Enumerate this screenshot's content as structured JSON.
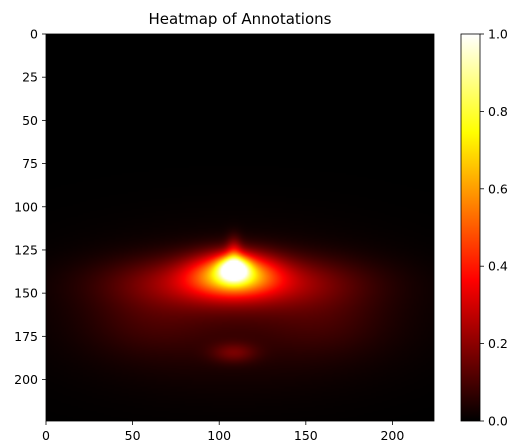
{
  "chart_data": {
    "type": "heatmap",
    "title": "Heatmap of Annotations",
    "xlabel": "",
    "ylabel": "",
    "xlim": [
      0,
      224
    ],
    "ylim": [
      224,
      0
    ],
    "x_ticks": [
      0,
      50,
      100,
      150,
      200
    ],
    "y_ticks": [
      0,
      25,
      50,
      75,
      100,
      125,
      150,
      175,
      200
    ],
    "colorbar": {
      "colormap": "hot",
      "range": [
        0.0,
        1.0
      ],
      "ticks": [
        "0.0",
        "0.2",
        "0.4",
        "0.6",
        "0.8",
        "1.0"
      ]
    },
    "grid": false,
    "hotspots": [
      {
        "x": 108,
        "y": 135,
        "sx": 6,
        "sy": 5,
        "value": 0.6
      },
      {
        "x": 108,
        "y": 138,
        "sx": 16,
        "sy": 8,
        "value": 0.5
      },
      {
        "x": 108,
        "y": 143,
        "sx": 42,
        "sy": 10,
        "value": 0.28
      },
      {
        "x": 108,
        "y": 160,
        "sx": 65,
        "sy": 28,
        "value": 0.07
      },
      {
        "x": 108,
        "y": 184,
        "sx": 9,
        "sy": 4,
        "value": 0.12
      },
      {
        "x": 60,
        "y": 165,
        "sx": 25,
        "sy": 14,
        "value": 0.05
      },
      {
        "x": 160,
        "y": 165,
        "sx": 25,
        "sy": 14,
        "value": 0.05
      },
      {
        "x": 108,
        "y": 125,
        "sx": 3,
        "sy": 6,
        "value": 0.15
      }
    ]
  }
}
